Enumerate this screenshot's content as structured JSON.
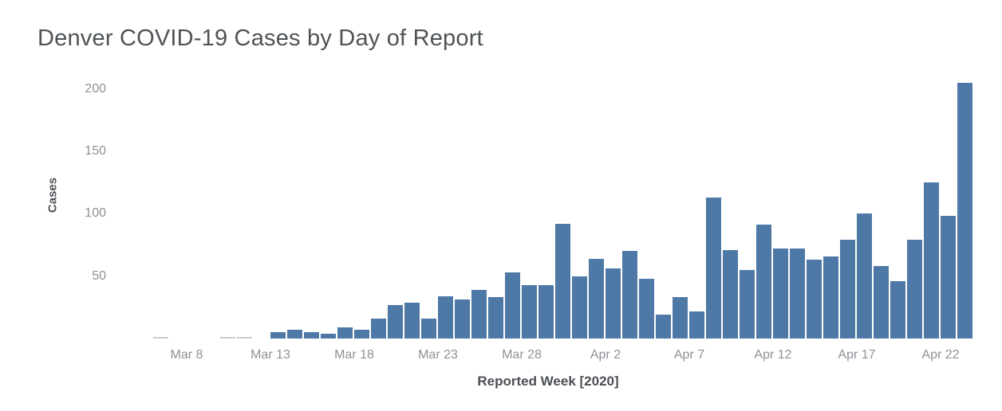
{
  "chart_data": {
    "type": "bar",
    "title": "Denver COVID-19 Cases by Day of Report",
    "xlabel": "Reported Week [2020]",
    "ylabel": "Cases",
    "categories": [
      "Mar 6",
      "Mar 7",
      "Mar 8",
      "Mar 9",
      "Mar 10",
      "Mar 11",
      "Mar 12",
      "Mar 13",
      "Mar 14",
      "Mar 15",
      "Mar 16",
      "Mar 17",
      "Mar 18",
      "Mar 19",
      "Mar 20",
      "Mar 21",
      "Mar 22",
      "Mar 23",
      "Mar 24",
      "Mar 25",
      "Mar 26",
      "Mar 27",
      "Mar 28",
      "Mar 29",
      "Mar 30",
      "Mar 31",
      "Apr 1",
      "Apr 2",
      "Apr 3",
      "Apr 4",
      "Apr 5",
      "Apr 6",
      "Apr 7",
      "Apr 8",
      "Apr 9",
      "Apr 10",
      "Apr 11",
      "Apr 12",
      "Apr 13",
      "Apr 14",
      "Apr 15",
      "Apr 16",
      "Apr 17",
      "Apr 18",
      "Apr 19",
      "Apr 20",
      "Apr 21",
      "Apr 22",
      "Apr 23"
    ],
    "values": [
      1,
      0,
      0,
      0,
      1,
      1,
      0,
      5,
      7,
      5,
      4,
      9,
      7,
      16,
      27,
      29,
      16,
      34,
      31,
      39,
      33,
      53,
      43,
      43,
      92,
      50,
      64,
      56,
      70,
      48,
      19,
      33,
      22,
      113,
      71,
      55,
      91,
      72,
      72,
      63,
      66,
      79,
      100,
      58,
      46,
      79,
      125,
      98,
      205
    ],
    "muted_bars": [
      "Mar 6",
      "Mar 10",
      "Mar 11"
    ],
    "x_tick_labels": [
      "Mar 8",
      "Mar 13",
      "Mar 18",
      "Mar 23",
      "Mar 28",
      "Apr 2",
      "Apr 7",
      "Apr 12",
      "Apr 17",
      "Apr 22"
    ],
    "y_ticks": [
      50,
      100,
      150,
      200
    ],
    "ylim": [
      0,
      213
    ],
    "grid": "off",
    "legend": "none",
    "colors": {
      "bar": "#4e79a7",
      "muted_bar": "#c9cdd2",
      "title_text": "#4e5357",
      "axis_title_text": "#4b4f54",
      "tick_text": "#8d9196",
      "background": "#ffffff"
    }
  }
}
